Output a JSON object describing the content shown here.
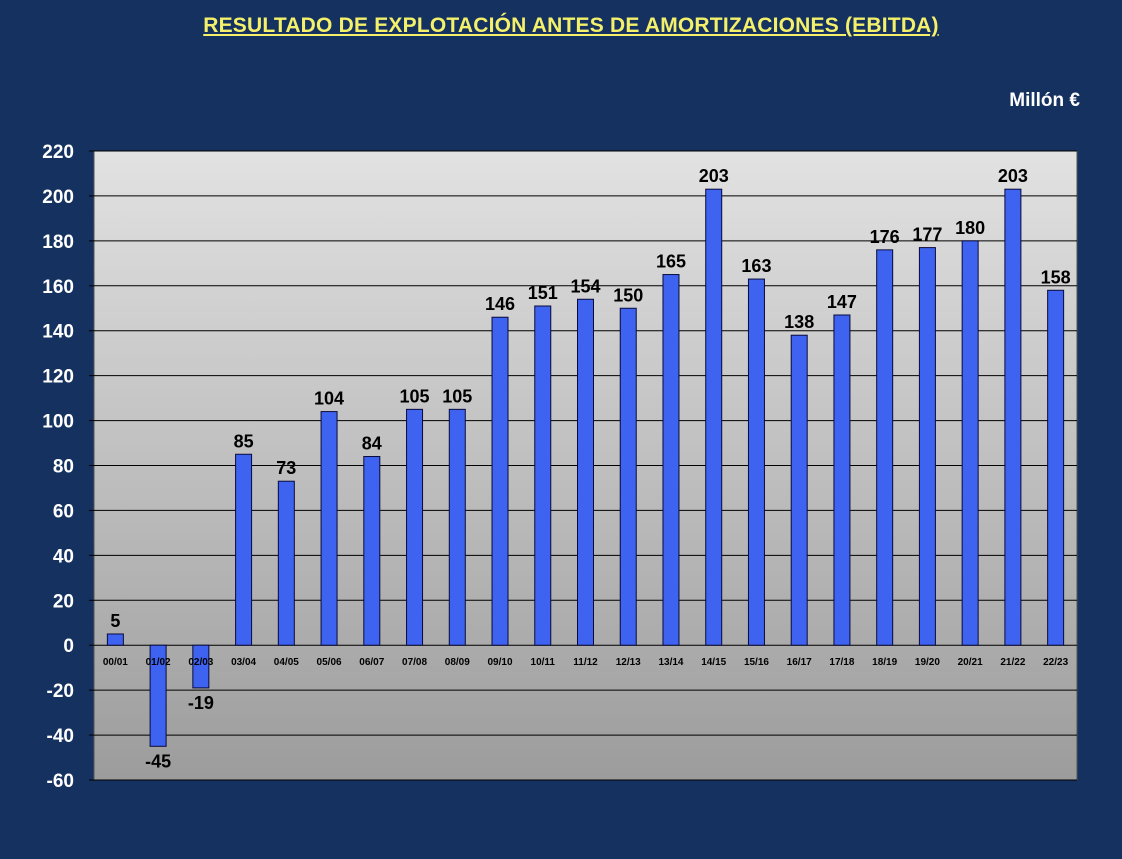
{
  "chart_data": {
    "type": "bar",
    "title": "RESULTADO DE EXPLOTACIÓN ANTES DE AMORTIZACIONES (EBITDA)",
    "unit": "Millón €",
    "categories": [
      "00/01",
      "01/02",
      "02/03",
      "03/04",
      "04/05",
      "05/06",
      "06/07",
      "07/08",
      "08/09",
      "09/10",
      "10/11",
      "11/12",
      "12/13",
      "13/14",
      "14/15",
      "15/16",
      "16/17",
      "17/18",
      "18/19",
      "19/20",
      "20/21",
      "21/22",
      "22/23"
    ],
    "values": [
      5,
      -45,
      -19,
      85,
      73,
      104,
      84,
      105,
      105,
      146,
      151,
      154,
      150,
      165,
      203,
      163,
      138,
      147,
      176,
      177,
      180,
      203,
      158
    ],
    "ylim": [
      -60,
      220
    ],
    "yticks": [
      220,
      200,
      180,
      160,
      140,
      120,
      100,
      80,
      60,
      40,
      20,
      0,
      -20,
      -40,
      -60
    ],
    "grid": true,
    "colors": {
      "bar": "#3d63f0",
      "bar_edge": "#0a0a3a",
      "plot_top": "#e2e2e2",
      "plot_bottom": "#9c9c9c",
      "background": "#143160",
      "title": "#f4f06a"
    }
  }
}
